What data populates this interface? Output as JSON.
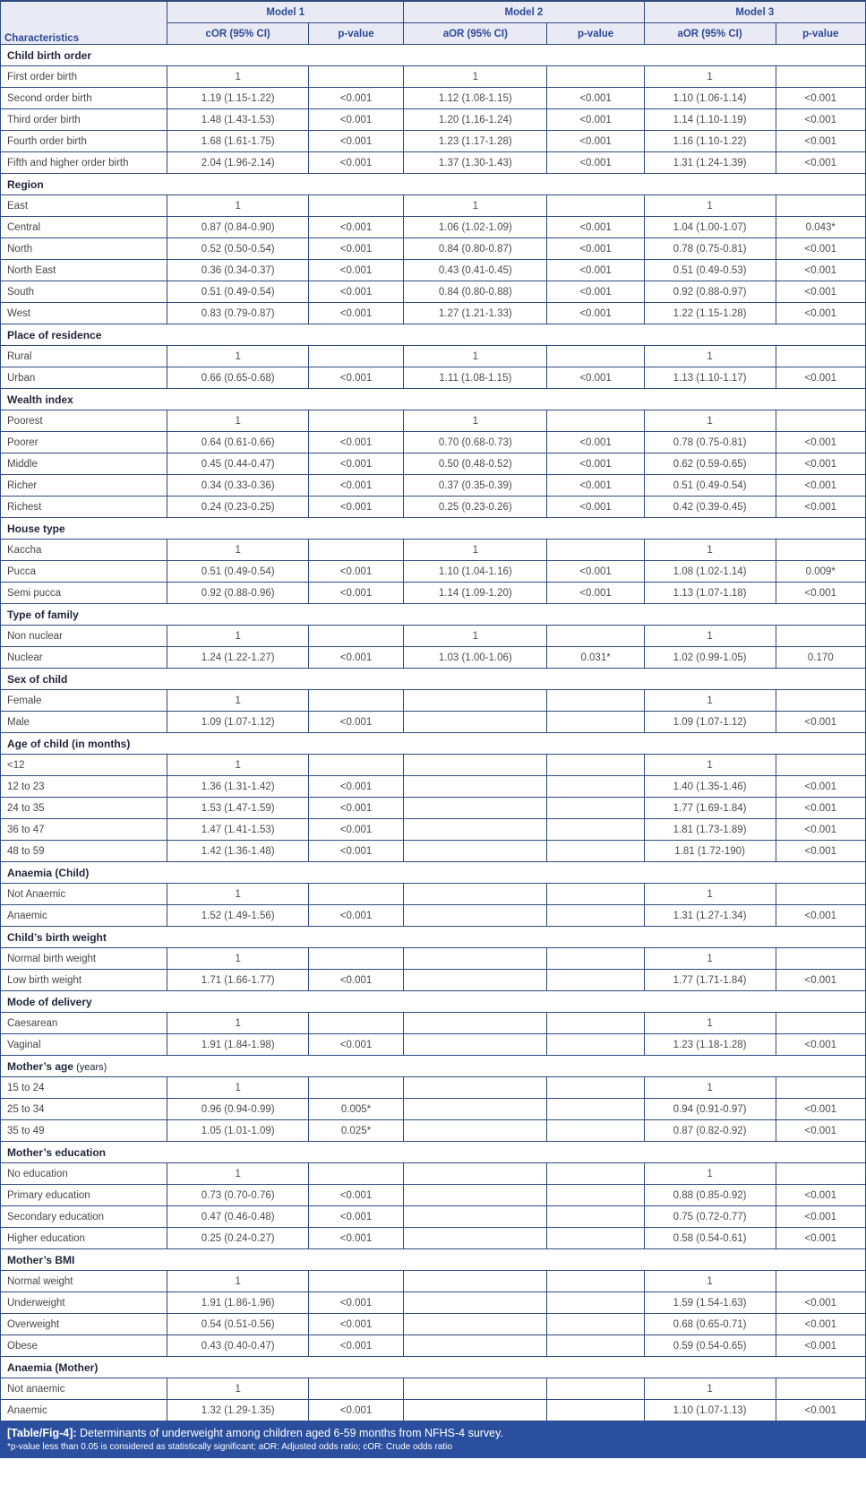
{
  "table": {
    "header": {
      "characteristics": "Characteristics",
      "models": [
        "Model 1",
        "Model 2",
        "Model 3"
      ],
      "sub_headers": [
        "cOR (95% CI)",
        "p-value",
        "aOR (95% CI)",
        "p-value",
        "aOR (95% CI)",
        "p-value"
      ]
    },
    "sections": [
      {
        "title": "Child birth order",
        "suffix": "",
        "rows": [
          {
            "label": "First order birth",
            "cells": [
              "1",
              "",
              "1",
              "",
              "1",
              ""
            ]
          },
          {
            "label": "Second order birth",
            "cells": [
              "1.19 (1.15-1.22)",
              "<0.001",
              "1.12 (1.08-1.15)",
              "<0.001",
              "1.10 (1.06-1.14)",
              "<0.001"
            ]
          },
          {
            "label": "Third order birth",
            "cells": [
              "1.48 (1.43-1.53)",
              "<0.001",
              "1.20 (1.16-1.24)",
              "<0.001",
              "1.14 (1.10-1.19)",
              "<0.001"
            ]
          },
          {
            "label": "Fourth order birth",
            "cells": [
              "1.68 (1.61-1.75)",
              "<0.001",
              "1.23 (1.17-1.28)",
              "<0.001",
              "1.16 (1.10-1.22)",
              "<0.001"
            ]
          },
          {
            "label": "Fifth and higher order birth",
            "cells": [
              "2.04 (1.96-2.14)",
              "<0.001",
              "1.37 (1.30-1.43)",
              "<0.001",
              "1.31 (1.24-1.39)",
              "<0.001"
            ]
          }
        ]
      },
      {
        "title": "Region",
        "suffix": "",
        "rows": [
          {
            "label": "East",
            "cells": [
              "1",
              "",
              "1",
              "",
              "1",
              ""
            ]
          },
          {
            "label": "Central",
            "cells": [
              "0.87 (0.84-0.90)",
              "<0.001",
              "1.06 (1.02-1.09)",
              "<0.001",
              "1.04 (1.00-1.07)",
              "0.043*"
            ]
          },
          {
            "label": "North",
            "cells": [
              "0.52 (0.50-0.54)",
              "<0.001",
              "0.84 (0.80-0.87)",
              "<0.001",
              "0.78 (0.75-0.81)",
              "<0.001"
            ]
          },
          {
            "label": "North East",
            "cells": [
              "0.36 (0.34-0.37)",
              "<0.001",
              "0.43 (0.41-0.45)",
              "<0.001",
              "0.51 (0.49-0.53)",
              "<0.001"
            ]
          },
          {
            "label": "South",
            "cells": [
              "0.51 (0.49-0.54)",
              "<0.001",
              "0.84 (0.80-0.88)",
              "<0.001",
              "0.92 (0.88-0.97)",
              "<0.001"
            ]
          },
          {
            "label": "West",
            "cells": [
              "0.83 (0.79-0.87)",
              "<0.001",
              "1.27 (1.21-1.33)",
              "<0.001",
              "1.22 (1.15-1.28)",
              "<0.001"
            ]
          }
        ]
      },
      {
        "title": "Place of residence",
        "suffix": "",
        "rows": [
          {
            "label": "Rural",
            "cells": [
              "1",
              "",
              "1",
              "",
              "1",
              ""
            ]
          },
          {
            "label": "Urban",
            "cells": [
              "0.66 (0.65-0.68)",
              "<0.001",
              "1.11 (1.08-1.15)",
              "<0.001",
              "1.13 (1.10-1.17)",
              "<0.001"
            ]
          }
        ]
      },
      {
        "title": "Wealth index",
        "suffix": "",
        "rows": [
          {
            "label": "Poorest",
            "cells": [
              "1",
              "",
              "1",
              "",
              "1",
              ""
            ]
          },
          {
            "label": "Poorer",
            "cells": [
              "0.64 (0.61-0.66)",
              "<0.001",
              "0.70 (0.68-0.73)",
              "<0.001",
              "0.78 (0.75-0.81)",
              "<0.001"
            ]
          },
          {
            "label": "Middle",
            "cells": [
              "0.45 (0.44-0.47)",
              "<0.001",
              "0.50 (0.48-0.52)",
              "<0.001",
              "0.62 (0.59-0.65)",
              "<0.001"
            ]
          },
          {
            "label": "Richer",
            "cells": [
              "0.34 (0.33-0.36)",
              "<0.001",
              "0.37 (0.35-0.39)",
              "<0.001",
              "0.51 (0.49-0.54)",
              "<0.001"
            ]
          },
          {
            "label": "Richest",
            "cells": [
              "0.24 (0.23-0.25)",
              "<0.001",
              "0.25 (0.23-0.26)",
              "<0.001",
              "0.42 (0.39-0.45)",
              "<0.001"
            ]
          }
        ]
      },
      {
        "title": "House type",
        "suffix": "",
        "rows": [
          {
            "label": "Kaccha",
            "cells": [
              "1",
              "",
              "1",
              "",
              "1",
              ""
            ]
          },
          {
            "label": "Pucca",
            "cells": [
              "0.51 (0.49-0.54)",
              "<0.001",
              "1.10 (1.04-1.16)",
              "<0.001",
              "1.08 (1.02-1.14)",
              "0.009*"
            ]
          },
          {
            "label": "Semi pucca",
            "cells": [
              "0.92 (0.88-0.96)",
              "<0.001",
              "1.14 (1.09-1.20)",
              "<0.001",
              "1.13 (1.07-1.18)",
              "<0.001"
            ]
          }
        ]
      },
      {
        "title": "Type of family",
        "suffix": "",
        "rows": [
          {
            "label": "Non nuclear",
            "cells": [
              "1",
              "",
              "1",
              "",
              "1",
              ""
            ]
          },
          {
            "label": "Nuclear",
            "cells": [
              "1.24 (1.22-1.27)",
              "<0.001",
              "1.03 (1.00-1.06)",
              "0.031*",
              "1.02 (0.99-1.05)",
              "0.170"
            ]
          }
        ]
      },
      {
        "title": "Sex of child",
        "suffix": "",
        "rows": [
          {
            "label": "Female",
            "cells": [
              "1",
              "",
              "",
              "",
              "1",
              ""
            ]
          },
          {
            "label": "Male",
            "cells": [
              "1.09 (1.07-1.12)",
              "<0.001",
              "",
              "",
              "1.09 (1.07-1.12)",
              "<0.001"
            ]
          }
        ]
      },
      {
        "title": "Age of child (in months)",
        "suffix": "",
        "rows": [
          {
            "label": "<12",
            "cells": [
              "1",
              "",
              "",
              "",
              "1",
              ""
            ]
          },
          {
            "label": "12 to 23",
            "cells": [
              "1.36 (1.31-1.42)",
              "<0.001",
              "",
              "",
              "1.40 (1.35-1.46)",
              "<0.001"
            ]
          },
          {
            "label": "24 to 35",
            "cells": [
              "1.53 (1.47-1.59)",
              "<0.001",
              "",
              "",
              "1.77 (1.69-1.84)",
              "<0.001"
            ]
          },
          {
            "label": "36 to 47",
            "cells": [
              "1.47 (1.41-1.53)",
              "<0.001",
              "",
              "",
              "1.81 (1.73-1.89)",
              "<0.001"
            ]
          },
          {
            "label": "48 to 59",
            "cells": [
              "1.42 (1.36-1.48)",
              "<0.001",
              "",
              "",
              "1.81 (1.72-190)",
              "<0.001"
            ]
          }
        ]
      },
      {
        "title": "Anaemia (Child)",
        "suffix": "",
        "rows": [
          {
            "label": "Not Anaemic",
            "cells": [
              "1",
              "",
              "",
              "",
              "1",
              ""
            ]
          },
          {
            "label": "Anaemic",
            "cells": [
              "1.52 (1.49-1.56)",
              "<0.001",
              "",
              "",
              "1.31 (1.27-1.34)",
              "<0.001"
            ]
          }
        ]
      },
      {
        "title": "Child’s birth weight",
        "suffix": "",
        "rows": [
          {
            "label": "Normal birth weight",
            "cells": [
              "1",
              "",
              "",
              "",
              "1",
              ""
            ]
          },
          {
            "label": "Low birth weight",
            "cells": [
              "1.71 (1.66-1.77)",
              "<0.001",
              "",
              "",
              "1.77 (1.71-1.84)",
              "<0.001"
            ]
          }
        ]
      },
      {
        "title": "Mode of delivery",
        "suffix": "",
        "rows": [
          {
            "label": "Caesarean",
            "cells": [
              "1",
              "",
              "",
              "",
              "1",
              ""
            ]
          },
          {
            "label": "Vaginal",
            "cells": [
              "1.91 (1.84-1.98)",
              "<0.001",
              "",
              "",
              "1.23 (1.18-1.28)",
              "<0.001"
            ]
          }
        ]
      },
      {
        "title": "Mother’s age",
        "suffix": " (years)",
        "rows": [
          {
            "label": "15 to 24",
            "cells": [
              "1",
              "",
              "",
              "",
              "1",
              ""
            ]
          },
          {
            "label": "25 to 34",
            "cells": [
              "0.96 (0.94-0.99)",
              "0.005*",
              "",
              "",
              "0.94 (0.91-0.97)",
              "<0.001"
            ]
          },
          {
            "label": "35 to 49",
            "cells": [
              "1.05 (1.01-1.09)",
              "0.025*",
              "",
              "",
              "0.87 (0.82-0.92)",
              "<0.001"
            ]
          }
        ]
      },
      {
        "title": "Mother’s education",
        "suffix": "",
        "rows": [
          {
            "label": "No education",
            "cells": [
              "1",
              "",
              "",
              "",
              "1",
              ""
            ]
          },
          {
            "label": "Primary education",
            "cells": [
              "0.73 (0.70-0.76)",
              "<0.001",
              "",
              "",
              "0.88 (0.85-0.92)",
              "<0.001"
            ]
          },
          {
            "label": "Secondary education",
            "cells": [
              "0.47 (0.46-0.48)",
              "<0.001",
              "",
              "",
              "0.75 (0.72-0.77)",
              "<0.001"
            ]
          },
          {
            "label": "Higher education",
            "cells": [
              "0.25 (0.24-0.27)",
              "<0.001",
              "",
              "",
              "0.58 (0.54-0.61)",
              "<0.001"
            ]
          }
        ]
      },
      {
        "title": "Mother’s BMI",
        "suffix": "",
        "rows": [
          {
            "label": "Normal weight",
            "cells": [
              "1",
              "",
              "",
              "",
              "1",
              ""
            ]
          },
          {
            "label": "Underweight",
            "cells": [
              "1.91 (1.86-1.96)",
              "<0.001",
              "",
              "",
              "1.59 (1.54-1.63)",
              "<0.001"
            ]
          },
          {
            "label": "Overweight",
            "cells": [
              "0.54 (0.51-0.56)",
              "<0.001",
              "",
              "",
              "0.68 (0.65-0.71)",
              "<0.001"
            ]
          },
          {
            "label": "Obese",
            "cells": [
              "0.43 (0.40-0.47)",
              "<0.001",
              "",
              "",
              "0.59 (0.54-0.65)",
              "<0.001"
            ]
          }
        ]
      },
      {
        "title": "Anaemia (Mother)",
        "suffix": "",
        "rows": [
          {
            "label": "Not anaemic",
            "cells": [
              "1",
              "",
              "",
              "",
              "1",
              ""
            ]
          },
          {
            "label": "Anaemic",
            "cells": [
              "1.32 (1.29-1.35)",
              "<0.001",
              "",
              "",
              "1.10 (1.07-1.13)",
              "<0.001"
            ]
          }
        ]
      }
    ],
    "footer": {
      "tag": "[Table/Fig-4]:",
      "caption": " Determinants of underweight among children aged 6-59 months from NFHS-4 survey.",
      "note": "*p-value less than 0.05 is considered as statistically significant; aOR: Adjusted odds ratio; cOR: Crude odds ratio"
    },
    "colors": {
      "header_bg": "#e9eaf3",
      "header_text": "#2b4a9a",
      "border": "#2d4a7e",
      "footer_bg": "#2b4f9f",
      "body_text": "#4b4b4b"
    }
  }
}
